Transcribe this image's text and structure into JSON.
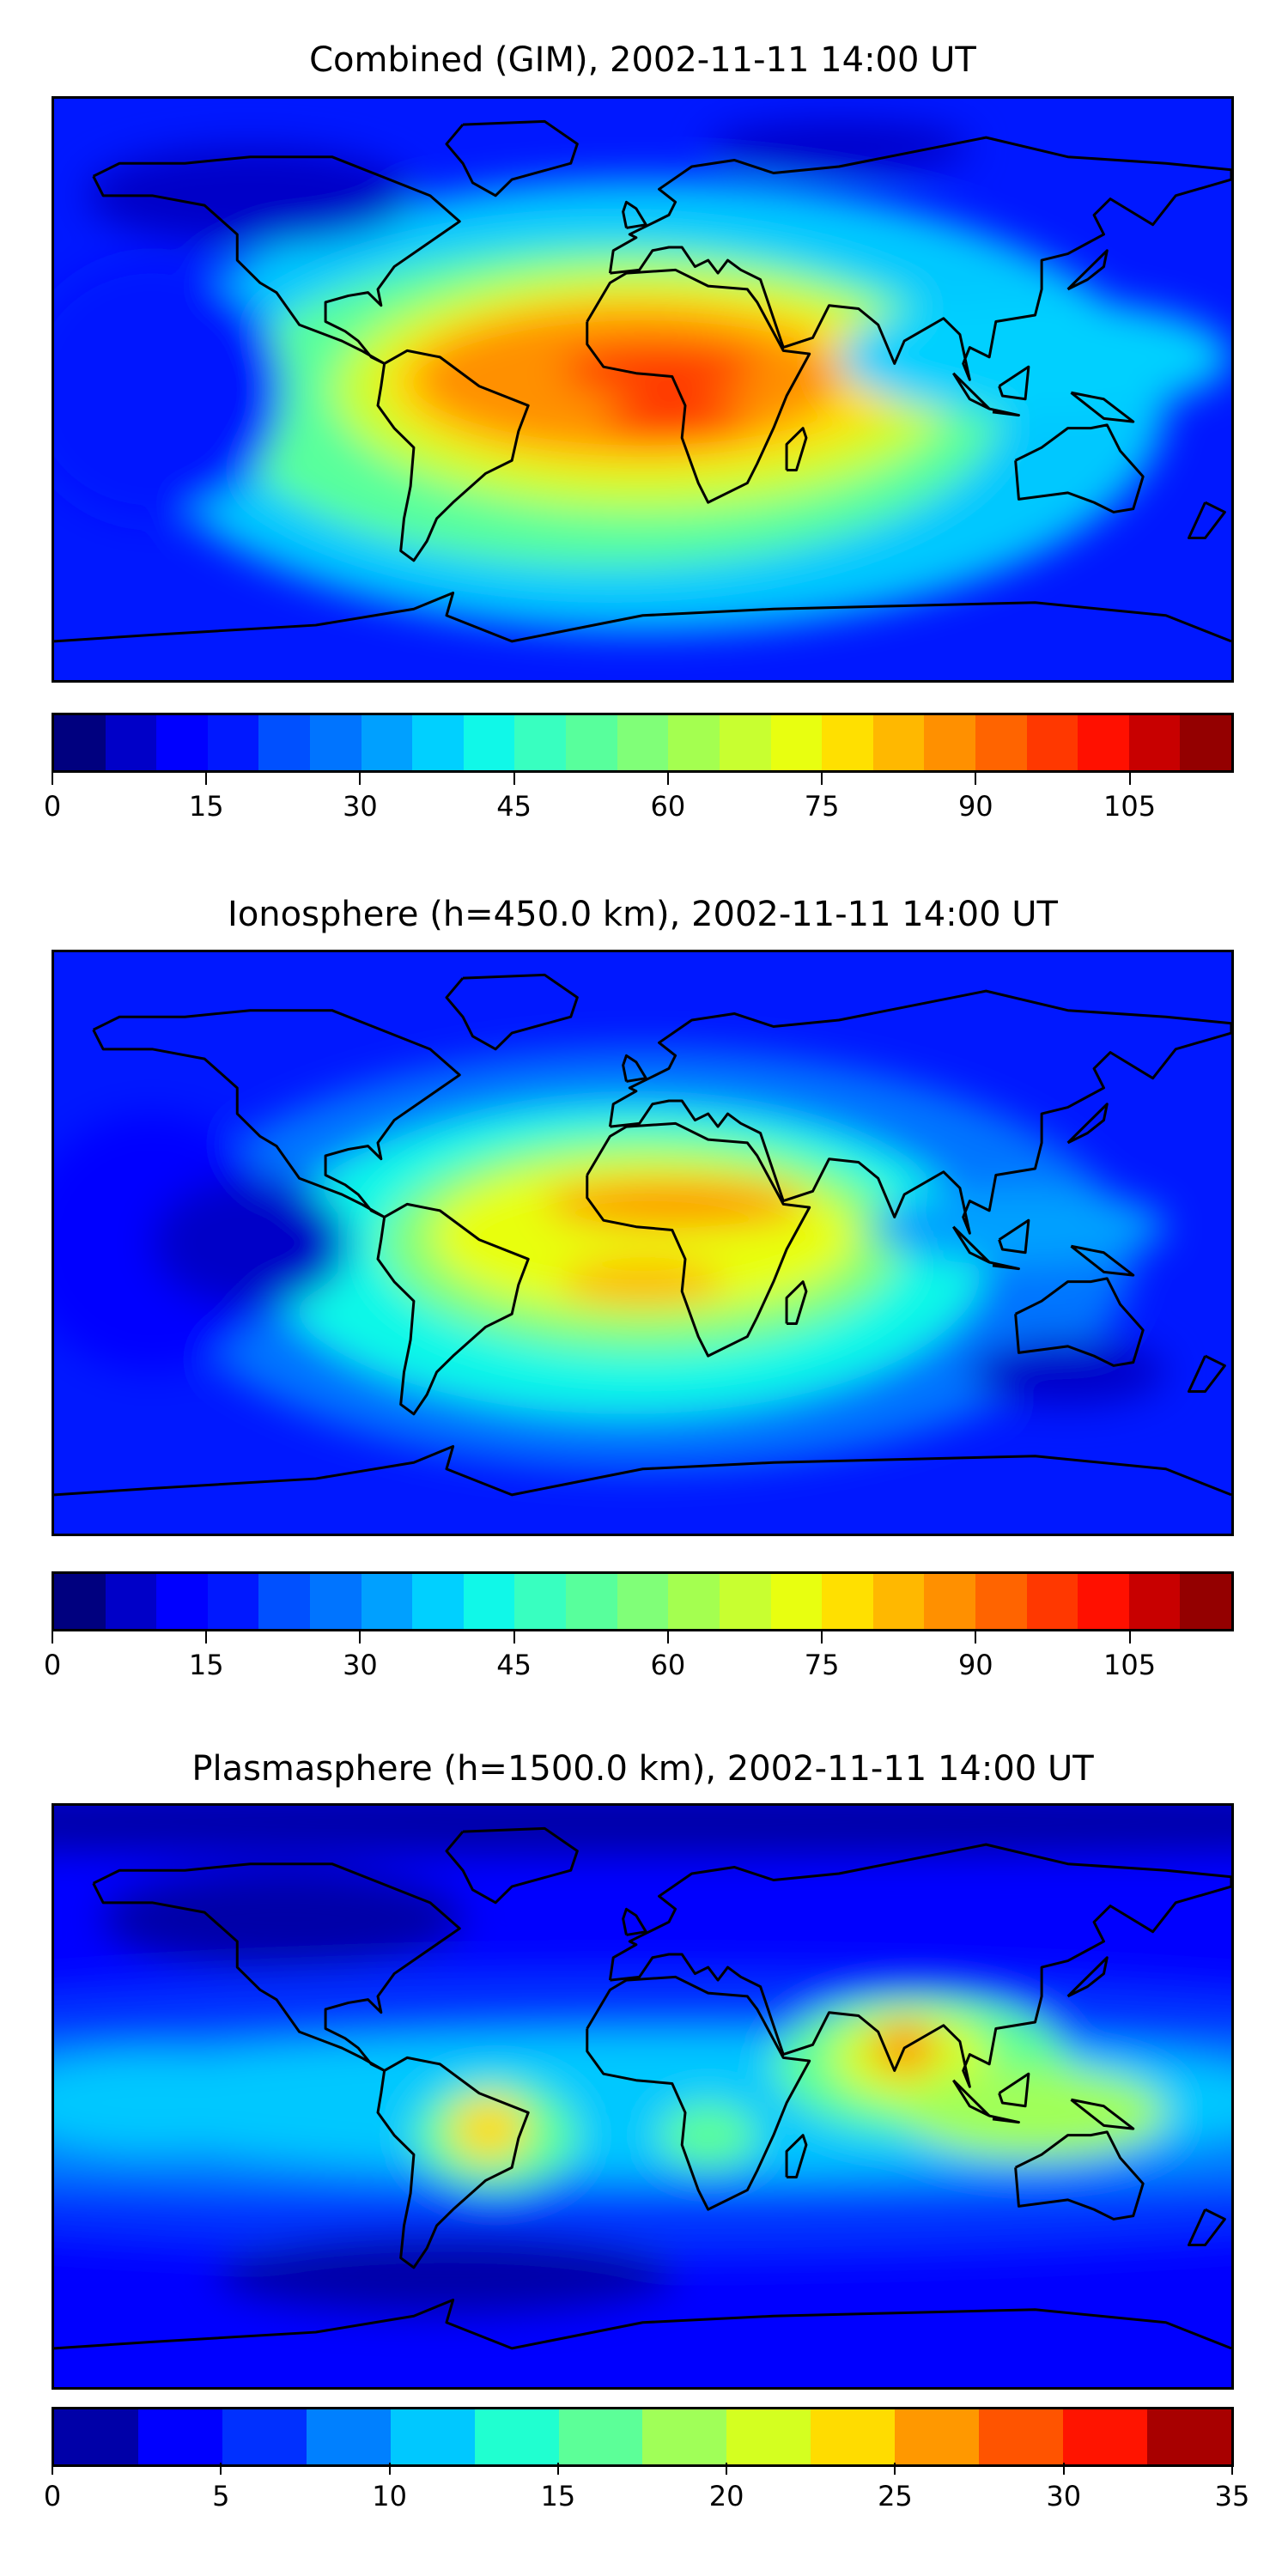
{
  "chart_data": [
    {
      "type": "heatmap",
      "title": "Combined (GIM), 2002-11-11 14:00 UT",
      "projection": "global map, coastlines",
      "colorbar": {
        "min": 0,
        "max": 115,
        "step": 5,
        "ticks": [
          "0",
          "15",
          "30",
          "45",
          "60",
          "75",
          "90",
          "105"
        ],
        "tick_values": [
          0,
          15,
          30,
          45,
          60,
          75,
          90,
          105
        ],
        "colors": [
          "#00007f",
          "#0000c8",
          "#0000ff",
          "#0018ff",
          "#0050ff",
          "#0074ff",
          "#00a0ff",
          "#00d0ff",
          "#10f8e8",
          "#38ffc0",
          "#58ff9c",
          "#80ff78",
          "#a4ff50",
          "#c8ff30",
          "#e8ff10",
          "#ffe000",
          "#ffb800",
          "#ff9000",
          "#ff6400",
          "#ff3800",
          "#ff1000",
          "#c80000",
          "#940000"
        ]
      },
      "features": "max ~95-100 over equatorial Africa / South Atlantic; minima ~5-15 at high latitudes and night side Pacific"
    },
    {
      "type": "heatmap",
      "title": "Ionosphere  (h=450.0 km), 2002-11-11 14:00 UT",
      "colorbar": {
        "min": 0,
        "max": 115,
        "step": 5,
        "ticks": [
          "0",
          "15",
          "30",
          "45",
          "60",
          "75",
          "90",
          "105"
        ],
        "tick_values": [
          0,
          15,
          30,
          45,
          60,
          75,
          90,
          105
        ],
        "colors": [
          "#00007f",
          "#0000c8",
          "#0000ff",
          "#0018ff",
          "#0050ff",
          "#0074ff",
          "#00a0ff",
          "#00d0ff",
          "#10f8e8",
          "#38ffc0",
          "#58ff9c",
          "#80ff78",
          "#a4ff50",
          "#c8ff30",
          "#e8ff10",
          "#ffe000",
          "#ffb800",
          "#ff9000",
          "#ff6400",
          "#ff3800",
          "#ff1000",
          "#c80000",
          "#940000"
        ]
      },
      "features": "max ~80-85 over North/Central Africa and South Atlantic"
    },
    {
      "type": "heatmap",
      "title": "Plasmasphere (h=1500.0 km), 2002-11-11 14:00 UT",
      "colorbar": {
        "min": 0,
        "max": 35,
        "step": 2.5,
        "ticks": [
          "0",
          "5",
          "10",
          "15",
          "20",
          "25",
          "30",
          "35"
        ],
        "tick_values": [
          0,
          5,
          10,
          15,
          20,
          25,
          30,
          35
        ],
        "colors": [
          "#0000a8",
          "#0000ff",
          "#0030ff",
          "#0080ff",
          "#00c8ff",
          "#20ffd0",
          "#5cff98",
          "#a0ff58",
          "#d4ff20",
          "#ffdc00",
          "#ff9800",
          "#ff5400",
          "#ff1400",
          "#a80000"
        ]
      },
      "features": "max ~25-27.5 over India and Brazil; equatorial band 10-20"
    }
  ]
}
